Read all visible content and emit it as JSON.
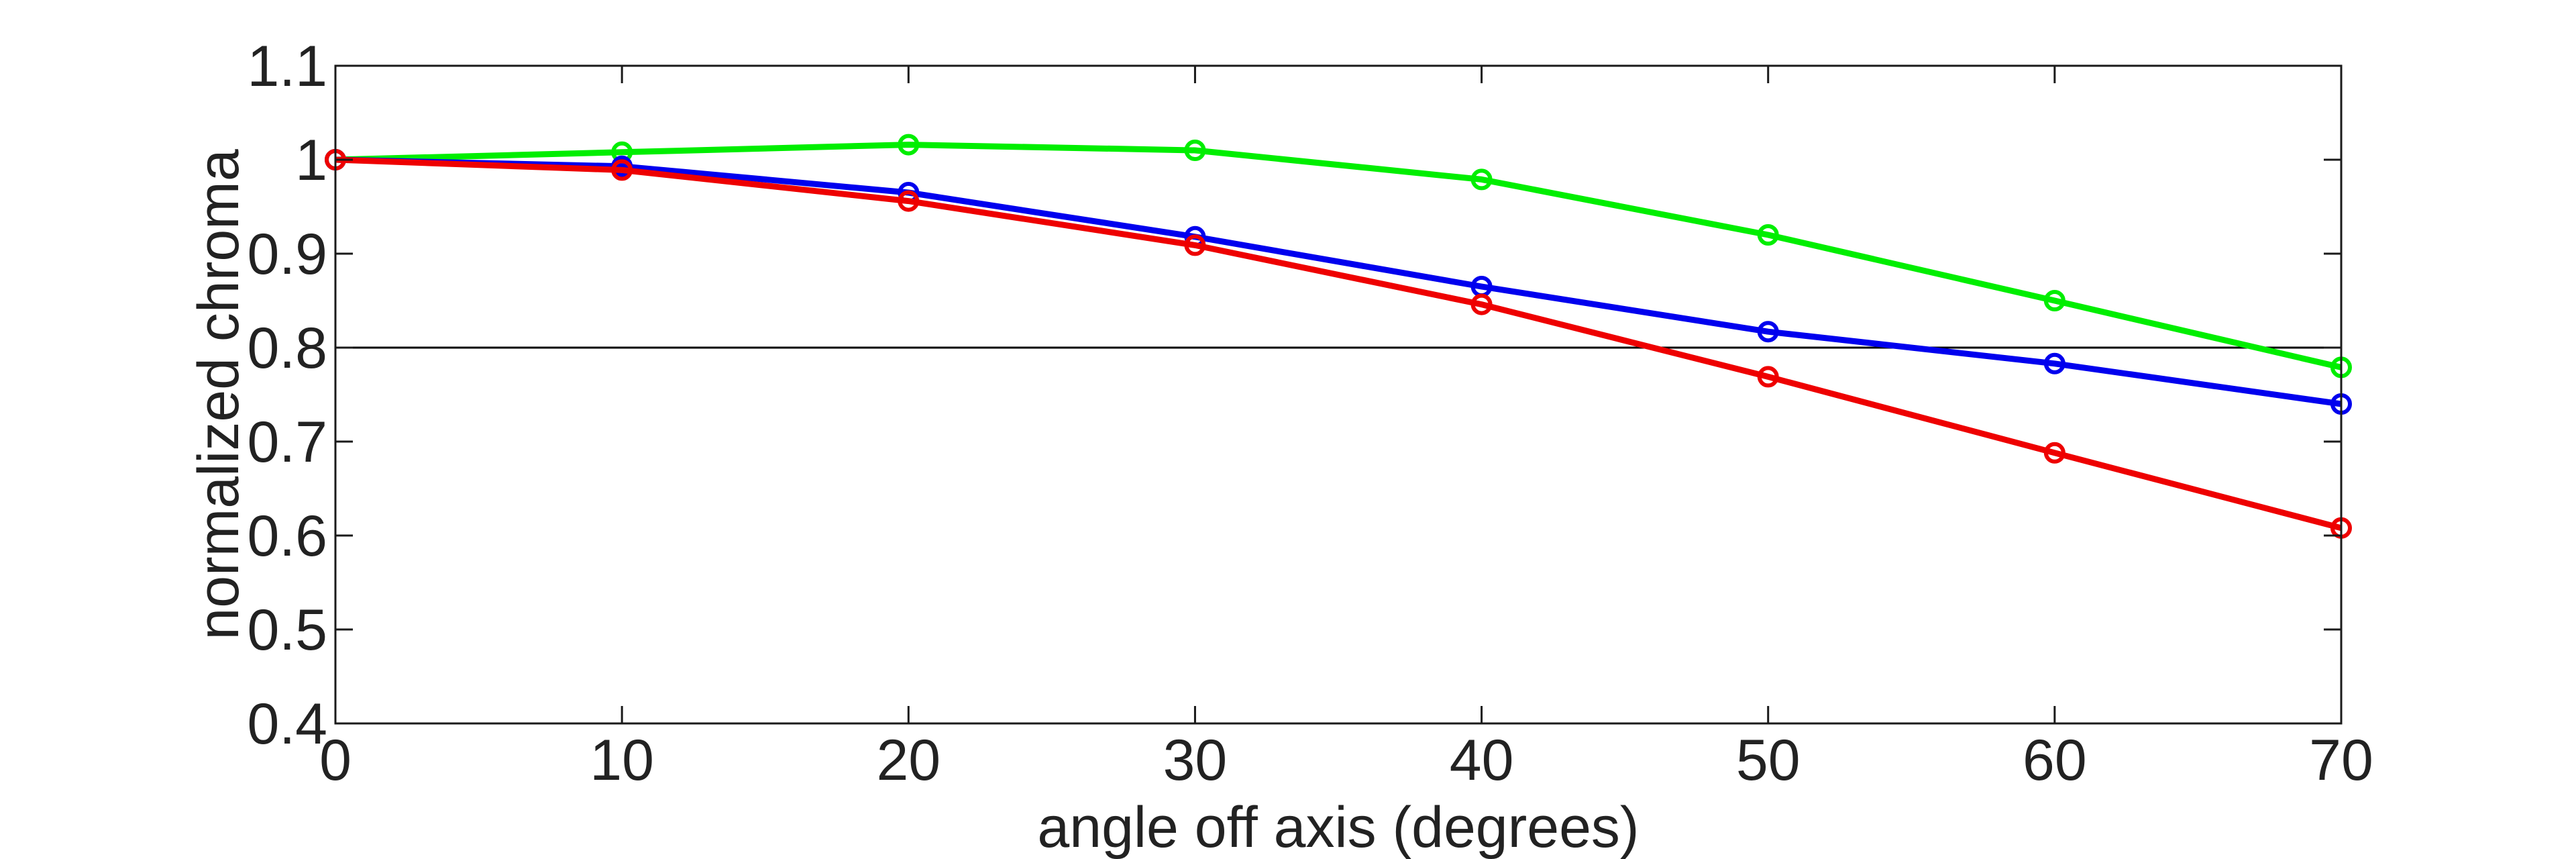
{
  "chart_data": {
    "type": "line",
    "title": "",
    "xlabel": "angle off axis (degrees)",
    "ylabel": "normalized chroma",
    "xlim": [
      0,
      70
    ],
    "ylim": [
      0.4,
      1.1
    ],
    "x_ticks": [
      "0",
      "10",
      "20",
      "30",
      "40",
      "50",
      "60",
      "70"
    ],
    "y_ticks": [
      "0.4",
      "0.5",
      "0.6",
      "0.7",
      "0.8",
      "0.9",
      "1",
      "1.1"
    ],
    "grid": false,
    "legend": "none",
    "reference_line": {
      "y": 0.8,
      "color": "#000000"
    },
    "x": [
      0,
      10,
      20,
      30,
      40,
      50,
      60,
      70
    ],
    "series": [
      {
        "color": "#00ee00",
        "values": [
          1.0,
          1.008,
          1.016,
          1.01,
          0.979,
          0.92,
          0.85,
          0.779
        ]
      },
      {
        "color": "#0000ee",
        "values": [
          1.0,
          0.993,
          0.965,
          0.918,
          0.865,
          0.817,
          0.783,
          0.74
        ]
      },
      {
        "color": "#ee0000",
        "values": [
          1.0,
          0.989,
          0.956,
          0.909,
          0.846,
          0.769,
          0.688,
          0.608
        ]
      }
    ]
  }
}
